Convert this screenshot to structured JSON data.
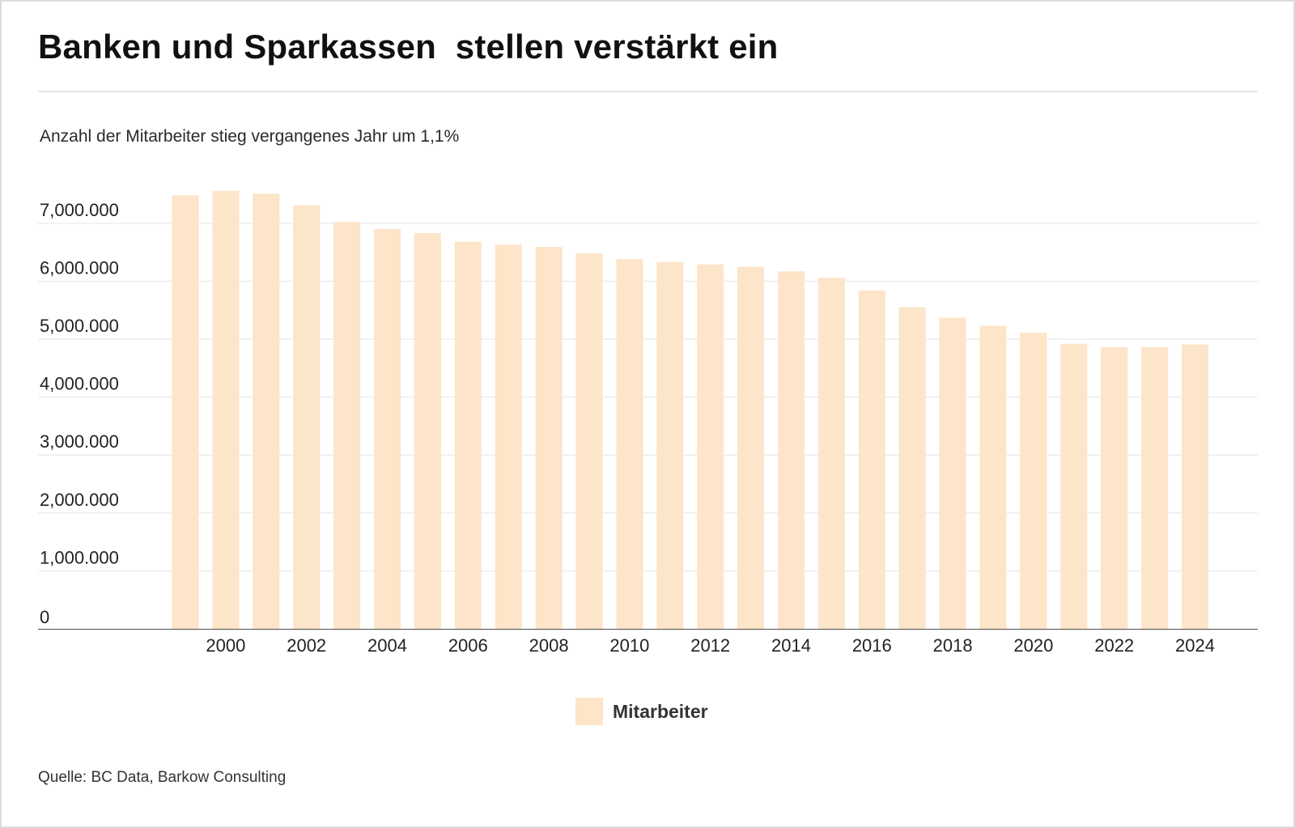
{
  "title": "Banken und Sparkassen  stellen verstärkt ein",
  "subtitle": "Anzahl der Mitarbeiter stieg vergangenes Jahr um 1,1%",
  "source": "Quelle: BC Data, Barkow Consulting",
  "colors": {
    "bar": "#fce5c8",
    "grid": "#e6e6e6",
    "axis": "#666666",
    "text": "#222222"
  },
  "chart_data": {
    "type": "bar",
    "title": "Banken und Sparkassen  stellen verstärkt ein",
    "subtitle": "Anzahl der Mitarbeiter stieg vergangenes Jahr um 1,1%",
    "xlabel": "",
    "ylabel": "",
    "ylim": [
      0,
      7500000
    ],
    "grid": true,
    "legend_position": "bottom-center",
    "y_ticks": [
      0,
      1000000,
      2000000,
      3000000,
      4000000,
      5000000,
      6000000,
      7000000
    ],
    "y_tick_labels": [
      "0",
      "1,000.000",
      "2,000.000",
      "3,000.000",
      "4,000.000",
      "5,000.000",
      "6,000.000",
      "7,000.000"
    ],
    "x_tick_labels": [
      "2000",
      "2002",
      "2004",
      "2006",
      "2008",
      "2010",
      "2012",
      "2014",
      "2016",
      "2018",
      "2020",
      "2022",
      "2024"
    ],
    "categories": [
      "1999",
      "2000",
      "2001",
      "2002",
      "2003",
      "2004",
      "2005",
      "2006",
      "2007",
      "2008",
      "2009",
      "2010",
      "2011",
      "2012",
      "2013",
      "2014",
      "2015",
      "2016",
      "2017",
      "2018",
      "2019",
      "2020",
      "2021",
      "2022",
      "2023",
      "2024"
    ],
    "series": [
      {
        "name": "Mitarbeiter",
        "values": [
          7480000,
          7560000,
          7510000,
          7310000,
          7020000,
          6900000,
          6830000,
          6680000,
          6630000,
          6590000,
          6480000,
          6380000,
          6330000,
          6290000,
          6250000,
          6170000,
          6060000,
          5840000,
          5550000,
          5370000,
          5230000,
          5110000,
          4920000,
          4860000,
          4860000,
          4910000
        ]
      }
    ]
  }
}
